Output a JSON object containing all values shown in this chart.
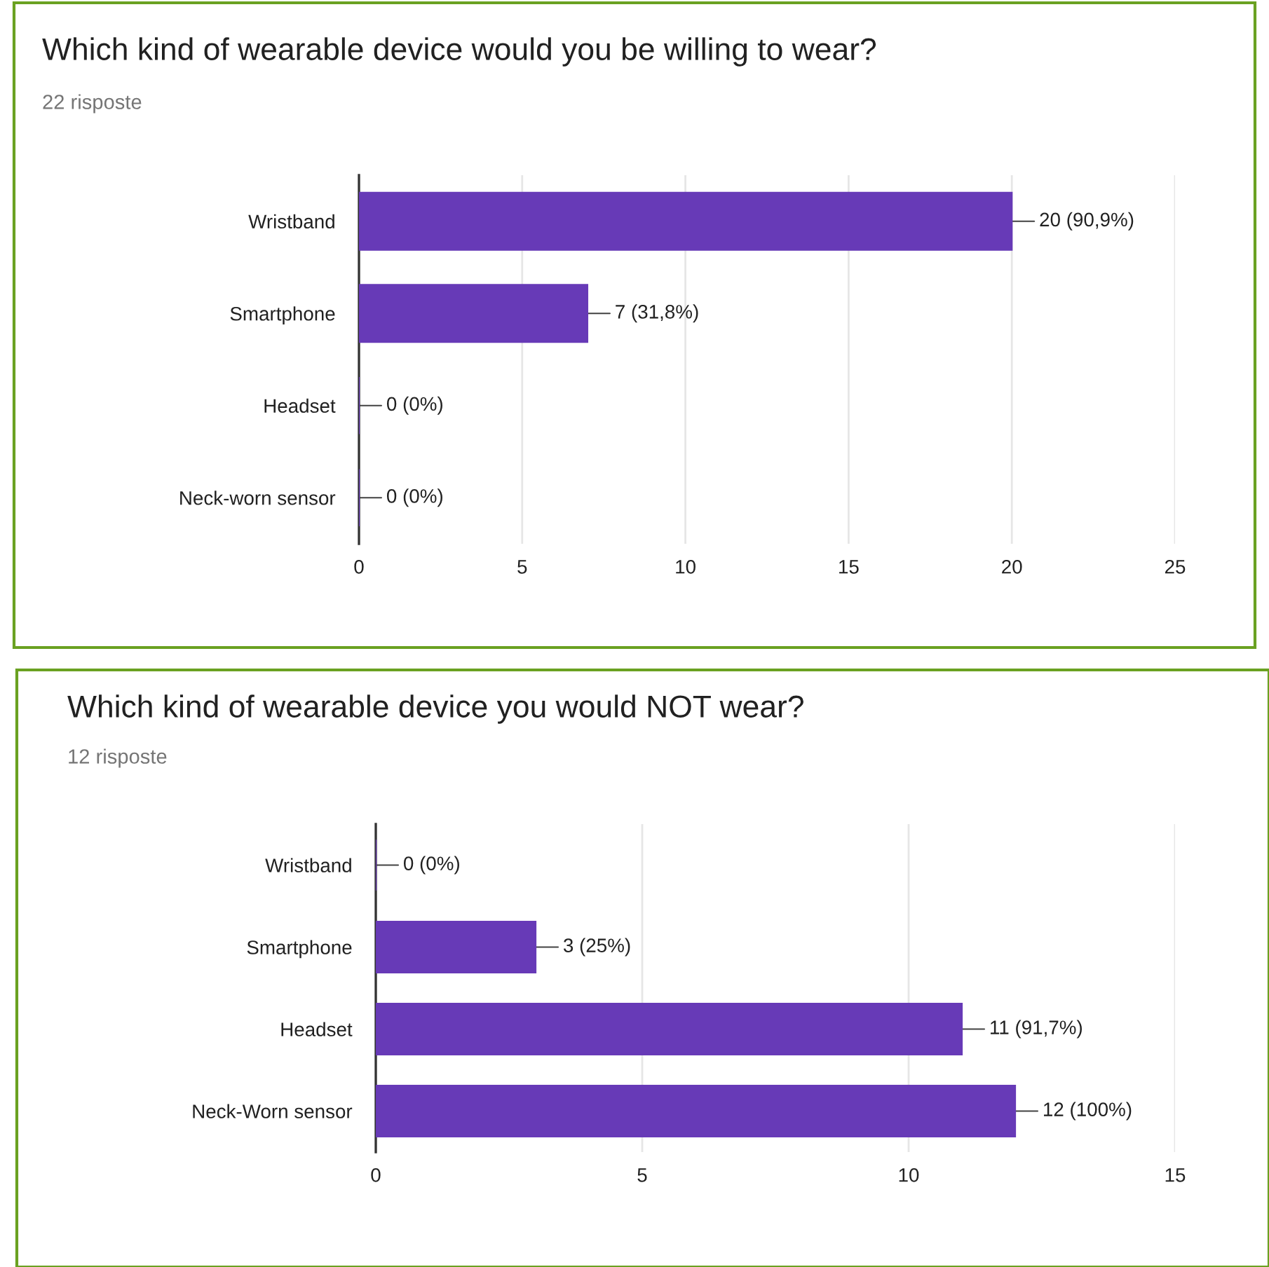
{
  "chart_data": [
    {
      "type": "bar",
      "orientation": "horizontal",
      "title": "Which kind of wearable device would you be willing to wear?",
      "subtitle": "22 risposte",
      "categories": [
        "Wristband",
        "Smartphone",
        "Headset",
        "Neck-worn sensor"
      ],
      "values": [
        20,
        7,
        0,
        0
      ],
      "color": "#673ab7",
      "value_labels": [
        "20 (90,9%)",
        "7 (31,8%)",
        "0 (0%)",
        "0 (0%)"
      ],
      "xlim": [
        0,
        25
      ],
      "xticks": [
        0,
        5,
        10,
        15,
        20,
        25
      ],
      "grid": "x"
    },
    {
      "type": "bar",
      "orientation": "horizontal",
      "title": "Which kind of wearable device you would NOT wear?",
      "subtitle": "12 risposte",
      "categories": [
        "Wristband",
        "Smartphone",
        "Headset",
        "Neck-Worn sensor"
      ],
      "values": [
        0,
        3,
        11,
        12
      ],
      "color": "#673ab7",
      "value_labels": [
        "0 (0%)",
        "3 (25%)",
        "11 (91,7%)",
        "12 (100%)"
      ],
      "xlim": [
        0,
        15
      ],
      "xticks": [
        0,
        5,
        10,
        15
      ],
      "grid": "x"
    }
  ]
}
